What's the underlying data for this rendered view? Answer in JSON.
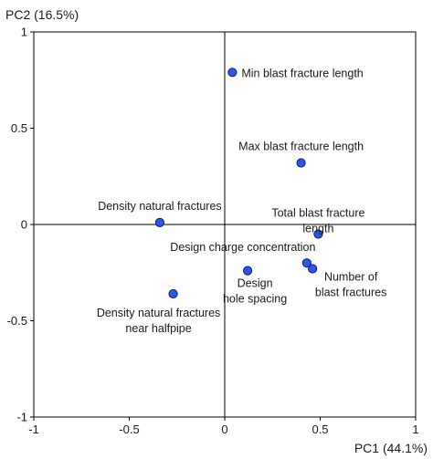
{
  "chart_data": {
    "type": "scatter",
    "ylabel": "PC2 (16.5%)",
    "xlabel": "PC1 (44.1%)",
    "xlim": [
      -1,
      1
    ],
    "ylim": [
      -1,
      1
    ],
    "x_ticks": [
      "-1",
      "-0.5",
      "0",
      "0.5",
      "1"
    ],
    "y_ticks": [
      "-1",
      "-0.5",
      "0",
      "0.5",
      "1"
    ],
    "grid": false,
    "zero_lines": true,
    "marker_color": "#2f55e6",
    "marker_edge_color": "#0a1e80",
    "points": [
      {
        "x": 0.04,
        "y": 0.79,
        "label_lines": [
          "Min blast fracture length"
        ]
      },
      {
        "x": 0.4,
        "y": 0.32,
        "label_lines": [
          "Max blast fracture length"
        ]
      },
      {
        "x": -0.34,
        "y": 0.01,
        "label_lines": [
          "Density natural fractures"
        ]
      },
      {
        "x": 0.49,
        "y": -0.05,
        "label_lines": [
          "Total blast fracture",
          "length"
        ]
      },
      {
        "x": 0.43,
        "y": -0.2,
        "label_lines": [
          "Design charge concentration"
        ]
      },
      {
        "x": 0.46,
        "y": -0.23,
        "label_lines": [
          "Number of",
          "blast fractures"
        ]
      },
      {
        "x": 0.12,
        "y": -0.24,
        "label_lines": [
          "Design",
          "hole spacing"
        ]
      },
      {
        "x": -0.27,
        "y": -0.36,
        "label_lines": [
          "Density natural fractures",
          "near halfpipe"
        ]
      }
    ]
  }
}
